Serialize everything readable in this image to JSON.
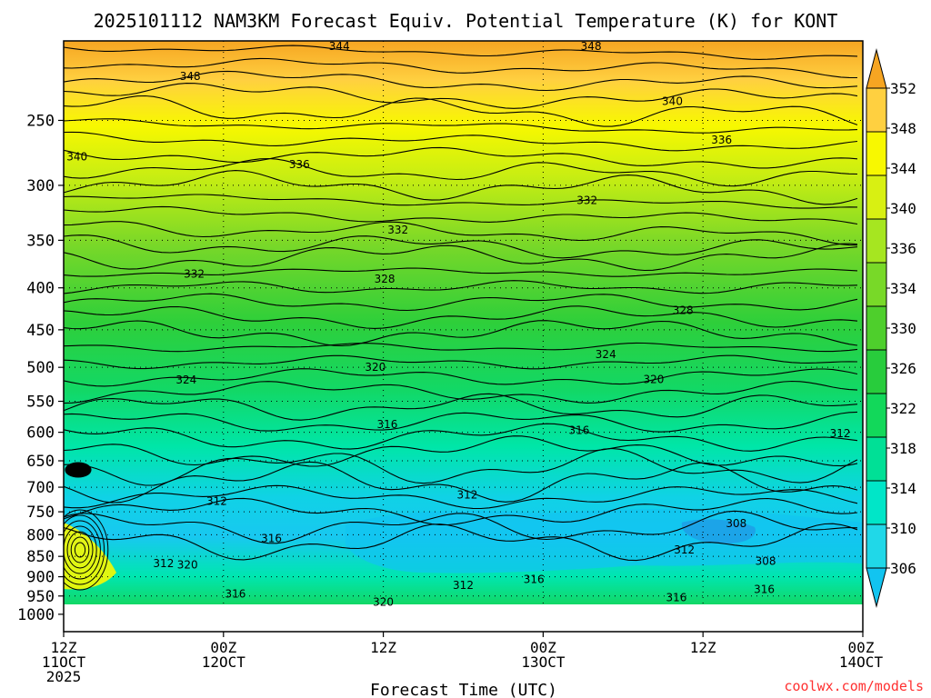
{
  "chart_data": {
    "type": "heatmap",
    "title": "2025101112 NAM3KM Forecast Equiv. Potential Temperature (K) for KONT",
    "xlabel": "Forecast Time (UTC)",
    "ylabel": "",
    "x_ticks": [
      {
        "hours": 0,
        "lines": [
          "12Z",
          "11OCT",
          "2025"
        ]
      },
      {
        "hours": 12,
        "lines": [
          "00Z",
          "12OCT"
        ]
      },
      {
        "hours": 24,
        "lines": [
          "12Z"
        ]
      },
      {
        "hours": 36,
        "lines": [
          "00Z",
          "13OCT"
        ]
      },
      {
        "hours": 48,
        "lines": [
          "12Z"
        ]
      },
      {
        "hours": 60,
        "lines": [
          "00Z",
          "14OCT"
        ]
      }
    ],
    "y_axis": {
      "scale": "log",
      "inverted": true,
      "range": [
        1050,
        200
      ],
      "ticks": [
        250,
        300,
        350,
        400,
        450,
        500,
        550,
        600,
        650,
        700,
        750,
        800,
        850,
        900,
        950,
        1000
      ]
    },
    "grid": "dotted",
    "colorbar": {
      "levels": [
        306,
        310,
        314,
        318,
        322,
        326,
        330,
        334,
        336,
        340,
        344,
        348,
        352
      ],
      "colors": [
        "#12c4f0",
        "#20d8e8",
        "#00e6c8",
        "#00e096",
        "#12d85a",
        "#28cc3c",
        "#4ecf2c",
        "#78d928",
        "#a6e620",
        "#d8f012",
        "#f8f800",
        "#ffd040",
        "#f6a522"
      ]
    },
    "contour_labels": [
      {
        "hours": 20.7,
        "p": 203,
        "text": "344"
      },
      {
        "hours": 39.6,
        "p": 203,
        "text": "348"
      },
      {
        "hours": 9.5,
        "p": 221,
        "text": "348"
      },
      {
        "hours": 45.7,
        "p": 237,
        "text": "340"
      },
      {
        "hours": 1,
        "p": 277,
        "text": "340"
      },
      {
        "hours": 17.7,
        "p": 283,
        "text": "336"
      },
      {
        "hours": 49.4,
        "p": 264,
        "text": "336"
      },
      {
        "hours": 39.3,
        "p": 313,
        "text": "332"
      },
      {
        "hours": 25.1,
        "p": 340,
        "text": "332"
      },
      {
        "hours": 9.8,
        "p": 385,
        "text": "332"
      },
      {
        "hours": 24.1,
        "p": 390,
        "text": "328"
      },
      {
        "hours": 46.5,
        "p": 426,
        "text": "328"
      },
      {
        "hours": 40.7,
        "p": 482,
        "text": "324"
      },
      {
        "hours": 9.2,
        "p": 518,
        "text": "324"
      },
      {
        "hours": 23.4,
        "p": 500,
        "text": "320"
      },
      {
        "hours": 44.3,
        "p": 517,
        "text": "320"
      },
      {
        "hours": 24.3,
        "p": 587,
        "text": "316"
      },
      {
        "hours": 38.7,
        "p": 597,
        "text": "316"
      },
      {
        "hours": 58.3,
        "p": 602,
        "text": "312"
      },
      {
        "hours": 30.3,
        "p": 715,
        "text": "312"
      },
      {
        "hours": 11.5,
        "p": 728,
        "text": "312"
      },
      {
        "hours": 50.5,
        "p": 775,
        "text": "308"
      },
      {
        "hours": 15.6,
        "p": 808,
        "text": "316"
      },
      {
        "hours": 46.6,
        "p": 835,
        "text": "312"
      },
      {
        "hours": 52.7,
        "p": 862,
        "text": "308"
      },
      {
        "hours": 7.5,
        "p": 867,
        "text": "312"
      },
      {
        "hours": 9.3,
        "p": 870,
        "text": "320"
      },
      {
        "hours": 35.3,
        "p": 907,
        "text": "316"
      },
      {
        "hours": 30.0,
        "p": 922,
        "text": "312"
      },
      {
        "hours": 12.9,
        "p": 945,
        "text": "316"
      },
      {
        "hours": 52.6,
        "p": 932,
        "text": "316"
      },
      {
        "hours": 46.0,
        "p": 954,
        "text": "316"
      },
      {
        "hours": 24.0,
        "p": 967,
        "text": "320"
      }
    ]
  },
  "credit": "coolwx.com/models"
}
